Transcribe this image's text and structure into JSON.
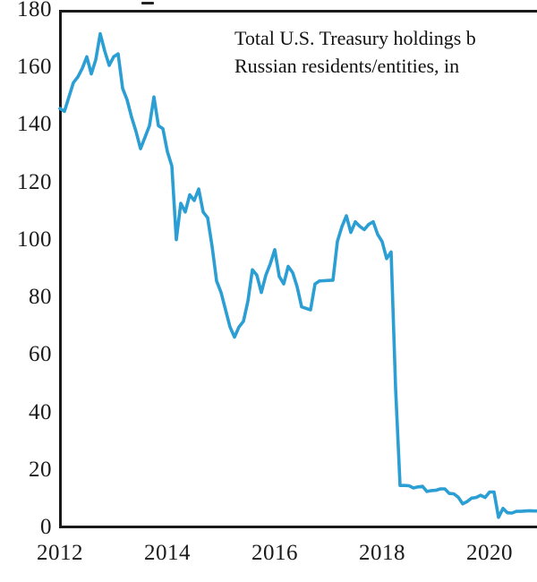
{
  "chart_data": {
    "type": "line",
    "title": "Total U.S. Treasury holdings b",
    "title_lines": [
      "Total U.S. Treasury holdings b",
      "Russian residents/entities, in"
    ],
    "xlabel": "",
    "ylabel": "",
    "ylim": [
      0,
      180
    ],
    "xlim_years": [
      2012,
      2020.9
    ],
    "grid": false,
    "legend": "none",
    "y_ticks": [
      "180",
      "160",
      "140",
      "120",
      "100",
      "80",
      "60",
      "40",
      "20",
      "0"
    ],
    "y_tick_values": [
      180,
      160,
      140,
      120,
      100,
      80,
      60,
      40,
      20,
      0
    ],
    "x_ticks": [
      "2012",
      "2014",
      "2016",
      "2018",
      "2020"
    ],
    "x_tick_values": [
      2012,
      2014,
      2016,
      2018,
      2020
    ],
    "series": [
      {
        "name": "Total U.S. Treasury holdings by Russian residents/entities ($bn)",
        "color": "#2b9ed3",
        "start_year": 2012,
        "points_per_year": 12,
        "values": [
          146,
          145,
          150,
          155,
          157,
          160,
          164,
          158,
          163,
          172,
          166,
          161,
          164,
          165,
          153,
          149,
          143,
          138,
          132,
          136,
          140,
          150,
          140,
          139,
          131,
          126,
          100.4,
          113,
          110,
          116,
          114,
          118,
          110,
          108,
          98,
          86,
          82,
          76,
          70,
          66.5,
          70,
          72,
          79,
          89.9,
          88,
          82,
          88,
          92,
          96.9,
          87.6,
          85,
          91.1,
          88.9,
          84,
          77,
          76.5,
          76,
          85,
          86,
          86.1,
          86.2,
          86.3,
          99.8,
          104.9,
          108.7,
          102.9,
          106.6,
          105,
          103.9,
          105.7,
          106.6,
          102.2,
          99.7,
          93.8,
          96.1,
          48.7,
          14.9,
          14.9,
          14.8,
          14,
          14.4,
          14.6,
          12.8,
          13.1,
          13.2,
          13.7,
          13.7,
          12.1,
          12,
          10.8,
          8.5,
          9.3,
          10.5,
          10.7,
          11.5,
          10.7,
          12.6,
          12.6,
          3.8,
          6.9,
          5.4,
          5.3,
          5.9,
          5.9,
          6,
          6.1,
          6,
          6
        ]
      }
    ]
  },
  "colors": {
    "line": "#2b9ed3",
    "axis": "#1a1a1a",
    "background": "#ffffff",
    "text": "#111111"
  }
}
